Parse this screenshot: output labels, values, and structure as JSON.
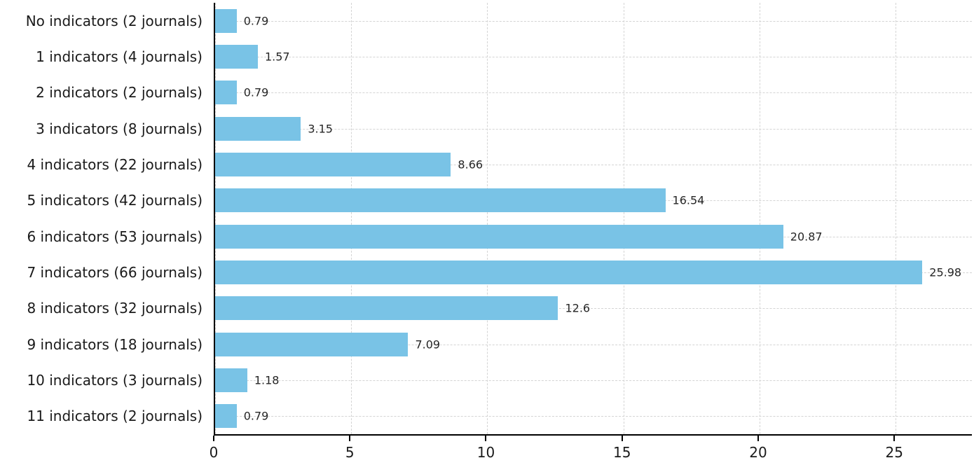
{
  "chart_data": {
    "type": "bar",
    "orientation": "horizontal",
    "title": "",
    "xlabel": "",
    "ylabel": "",
    "categories": [
      "No indicators (2 journals)",
      "1 indicators (4 journals)",
      "2 indicators (2 journals)",
      "3 indicators (8 journals)",
      "4 indicators (22 journals)",
      "5 indicators (42 journals)",
      "6 indicators (53 journals)",
      "7 indicators (66 journals)",
      "8 indicators (32 journals)",
      "9 indicators (18 journals)",
      "10 indicators (3 journals)",
      "11 indicators (2 journals)"
    ],
    "values": [
      0.79,
      1.57,
      0.79,
      3.15,
      8.66,
      16.54,
      20.87,
      25.98,
      12.6,
      7.09,
      1.18,
      0.79
    ],
    "value_labels": [
      "0.79",
      "1.57",
      "0.79",
      "3.15",
      "8.66",
      "16.54",
      "20.87",
      "25.98",
      "12.6",
      "7.09",
      "1.18",
      "0.79"
    ],
    "x_ticks": [
      0,
      5,
      10,
      15,
      20,
      25
    ],
    "x_tick_labels": [
      "0",
      "5",
      "10",
      "15",
      "20",
      "25"
    ],
    "xlim": [
      0,
      27.8
    ],
    "bar_color": "#79C3E6",
    "grid": true,
    "legend": "none"
  }
}
